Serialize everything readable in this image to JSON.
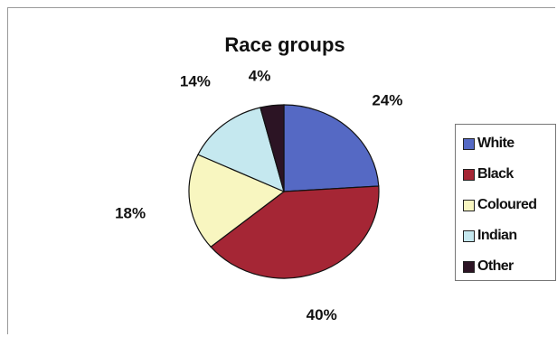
{
  "chart_data": {
    "type": "pie",
    "title": "Race groups",
    "slices": [
      {
        "label": "White",
        "value": 24,
        "display": "24%",
        "color": "#5569c4"
      },
      {
        "label": "Black",
        "value": 40,
        "display": "40%",
        "color": "#a52635"
      },
      {
        "label": "Coloured",
        "value": 18,
        "display": "18%",
        "color": "#f8f6c0"
      },
      {
        "label": "Indian",
        "value": 14,
        "display": "14%",
        "color": "#c5e8ef"
      },
      {
        "label": "Other",
        "value": 4,
        "display": "4%",
        "color": "#2c1424"
      }
    ],
    "legend_position": "right"
  }
}
